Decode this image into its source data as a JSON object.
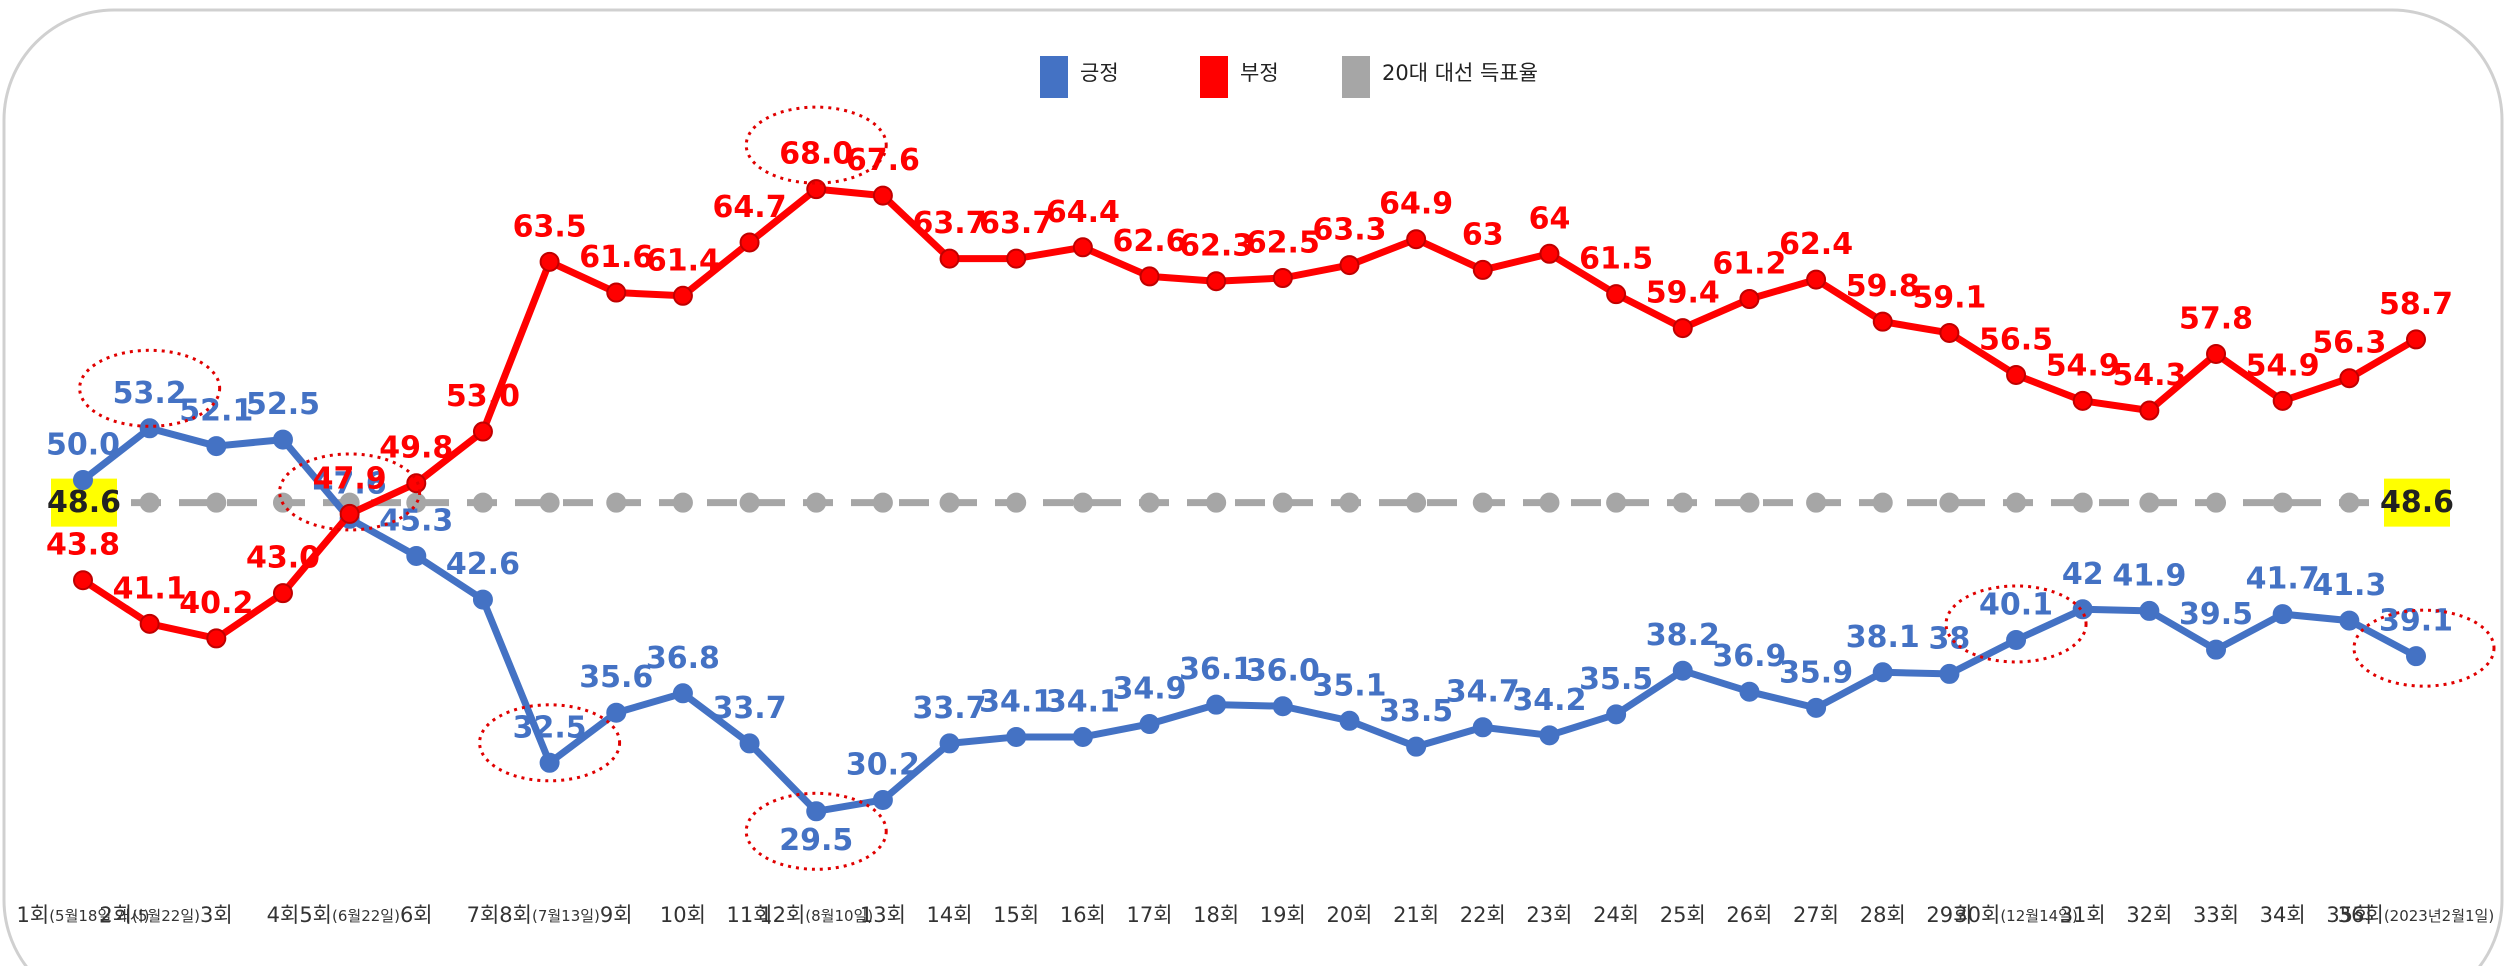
{
  "chart_data": {
    "type": "line",
    "categories": [
      "1회(5월18일 개시)",
      "2회(5월22일)",
      "3회",
      "4회",
      "5회(6월22일)",
      "6회",
      "7회",
      "8회(7월13일)",
      "9회",
      "10회",
      "11회",
      "12회(8월10일)",
      "13회",
      "14회",
      "15회",
      "16회",
      "17회",
      "18회",
      "19회",
      "20회",
      "21회",
      "22회",
      "23회",
      "24회",
      "25회",
      "26회",
      "27회",
      "28회",
      "29회",
      "30회(12월14일)",
      "31회",
      "32회",
      "33회",
      "34회",
      "35회",
      "36회(2023년2월1일)"
    ],
    "series": [
      {
        "name": "긍정",
        "color": "#4472c4",
        "values": [
          50.0,
          53.2,
          52.1,
          52.5,
          47.6,
          45.3,
          42.6,
          32.5,
          35.6,
          36.8,
          33.7,
          29.5,
          30.2,
          33.7,
          34.1,
          34.1,
          34.9,
          36.1,
          36.0,
          35.1,
          33.5,
          34.7,
          34.2,
          35.5,
          38.2,
          36.9,
          35.9,
          38.1,
          38,
          40.1,
          42,
          41.9,
          39.5,
          41.7,
          41.3,
          39.1
        ],
        "value_labels": [
          "50.0",
          "53.2",
          "52.1",
          "52.5",
          "47.6",
          "45.3",
          "42.6",
          "32.5",
          "35.6",
          "36.8",
          "33.7",
          "29.5",
          "30.2",
          "33.7",
          "34.1",
          "34.1",
          "34.9",
          "36.1",
          "36.0",
          "35.1",
          "33.5",
          "34.7",
          "34.2",
          "35.5",
          "38.2",
          "36.9",
          "35.9",
          "38.1",
          "38",
          "40.1",
          "42",
          "41.9",
          "39.5",
          "41.7",
          "41.3",
          "39.1"
        ]
      },
      {
        "name": "부정",
        "color": "#ff0000",
        "values": [
          43.8,
          41.1,
          40.2,
          43.0,
          47.9,
          49.8,
          53.0,
          63.5,
          61.6,
          61.4,
          64.7,
          68.0,
          67.6,
          63.7,
          63.7,
          64.4,
          62.6,
          62.3,
          62.5,
          63.3,
          64.9,
          63,
          64,
          61.5,
          59.4,
          61.2,
          62.4,
          59.8,
          59.1,
          56.5,
          54.9,
          54.3,
          57.8,
          54.9,
          56.3,
          58.7
        ],
        "value_labels": [
          "43.8",
          "41.1",
          "40.2",
          "43.0",
          "47.9",
          "49.8",
          "53.0",
          "63.5",
          "61.6",
          "61.4",
          "64.7",
          "68.0",
          "67.6",
          "63.7",
          "63.7",
          "64.4",
          "62.6",
          "62.3",
          "62.5",
          "63.3",
          "64.9",
          "63",
          "64",
          "61.5",
          "59.4",
          "61.2",
          "62.4",
          "59.8",
          "59.1",
          "56.5",
          "54.9",
          "54.3",
          "57.8",
          "54.9",
          "56.3",
          "58.7"
        ]
      },
      {
        "name": "20대 대선 득표율",
        "color": "#a6a6a6",
        "values": [
          48.6,
          48.6,
          48.6,
          48.6,
          48.6,
          48.6,
          48.6,
          48.6,
          48.6,
          48.6,
          48.6,
          48.6,
          48.6,
          48.6,
          48.6,
          48.6,
          48.6,
          48.6,
          48.6,
          48.6,
          48.6,
          48.6,
          48.6,
          48.6,
          48.6,
          48.6,
          48.6,
          48.6,
          48.6,
          48.6,
          48.6,
          48.6,
          48.6,
          48.6,
          48.6,
          48.6
        ]
      }
    ],
    "ylim": [
      25,
      75
    ],
    "legend": "top"
  }
}
